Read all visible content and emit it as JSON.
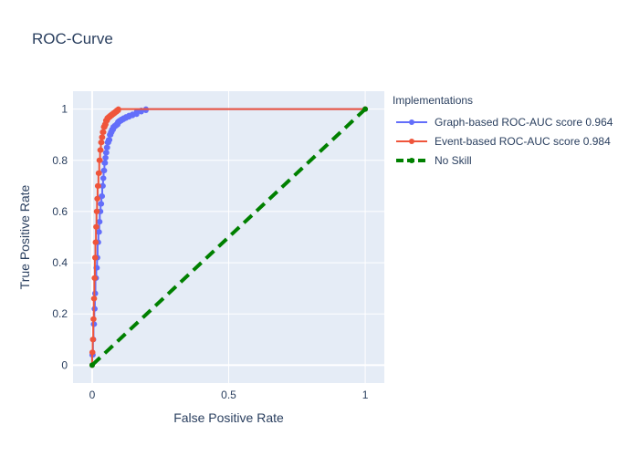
{
  "chart_data": {
    "type": "line",
    "title": "ROC-Curve",
    "xlabel": "False Positive Rate",
    "ylabel": "True Positive Rate",
    "xlim": [
      -0.07,
      1.07
    ],
    "ylim": [
      -0.07,
      1.07
    ],
    "x_ticks": [
      0,
      0.5,
      1
    ],
    "x_tick_labels": [
      "0",
      "0.5",
      "1"
    ],
    "y_ticks": [
      0,
      0.2,
      0.4,
      0.6,
      0.8,
      1
    ],
    "y_tick_labels": [
      "0",
      "0.2",
      "0.4",
      "0.6",
      "0.8",
      "1"
    ],
    "grid": true,
    "legend_title": "Implementations",
    "legend_position": "right",
    "series": [
      {
        "name": "Graph-based ROC-AUC score 0.964",
        "color": "#636efa",
        "dash": "solid",
        "x": [
          0,
          0,
          0.003,
          0.003,
          0.005,
          0.005,
          0.008,
          0.008,
          0.01,
          0.01,
          0.012,
          0.012,
          0.015,
          0.015,
          0.018,
          0.018,
          0.02,
          0.02,
          0.023,
          0.023,
          0.026,
          0.026,
          0.028,
          0.028,
          0.031,
          0.031,
          0.034,
          0.034,
          0.037,
          0.037,
          0.04,
          0.04,
          0.042,
          0.042,
          0.045,
          0.045,
          0.048,
          0.048,
          0.05,
          0.05,
          0.053,
          0.053,
          0.056,
          0.056,
          0.06,
          0.06,
          0.064,
          0.064,
          0.068,
          0.068,
          0.072,
          0.072,
          0.077,
          0.077,
          0.082,
          0.082,
          0.088,
          0.088,
          0.094,
          0.094,
          0.1,
          0.1,
          0.107,
          0.107,
          0.115,
          0.115,
          0.124,
          0.124,
          0.135,
          0.135,
          0.148,
          0.148,
          0.163,
          0.163,
          0.18,
          0.18,
          0.197,
          0.197,
          1
        ],
        "y": [
          0,
          0.04,
          0.04,
          0.1,
          0.1,
          0.16,
          0.16,
          0.22,
          0.22,
          0.28,
          0.28,
          0.34,
          0.34,
          0.38,
          0.38,
          0.42,
          0.42,
          0.48,
          0.48,
          0.52,
          0.52,
          0.56,
          0.56,
          0.6,
          0.6,
          0.63,
          0.63,
          0.66,
          0.66,
          0.7,
          0.7,
          0.73,
          0.73,
          0.76,
          0.76,
          0.79,
          0.79,
          0.81,
          0.81,
          0.83,
          0.83,
          0.85,
          0.85,
          0.87,
          0.87,
          0.88,
          0.88,
          0.9,
          0.9,
          0.91,
          0.91,
          0.92,
          0.92,
          0.93,
          0.93,
          0.935,
          0.935,
          0.94,
          0.94,
          0.95,
          0.95,
          0.955,
          0.955,
          0.96,
          0.96,
          0.965,
          0.965,
          0.97,
          0.97,
          0.975,
          0.975,
          0.98,
          0.98,
          0.99,
          0.99,
          0.995,
          0.995,
          1.0,
          1.0
        ]
      },
      {
        "name": "Event-based ROC-AUC score 0.984",
        "color": "#ef553b",
        "dash": "solid",
        "x": [
          0,
          0,
          0.002,
          0.002,
          0.004,
          0.004,
          0.006,
          0.006,
          0.008,
          0.008,
          0.01,
          0.01,
          0.012,
          0.012,
          0.014,
          0.014,
          0.016,
          0.016,
          0.018,
          0.018,
          0.02,
          0.02,
          0.023,
          0.023,
          0.026,
          0.026,
          0.029,
          0.029,
          0.032,
          0.032,
          0.035,
          0.035,
          0.038,
          0.038,
          0.042,
          0.042,
          0.046,
          0.046,
          0.05,
          0.05,
          0.055,
          0.055,
          0.06,
          0.06,
          0.066,
          0.066,
          0.072,
          0.072,
          0.078,
          0.078,
          0.084,
          0.084,
          0.09,
          0.09,
          0.096,
          0.096,
          1
        ],
        "y": [
          0,
          0.05,
          0.05,
          0.1,
          0.1,
          0.18,
          0.18,
          0.26,
          0.26,
          0.34,
          0.34,
          0.42,
          0.42,
          0.48,
          0.48,
          0.54,
          0.54,
          0.6,
          0.6,
          0.65,
          0.65,
          0.7,
          0.7,
          0.75,
          0.75,
          0.8,
          0.8,
          0.84,
          0.84,
          0.87,
          0.87,
          0.89,
          0.89,
          0.91,
          0.91,
          0.93,
          0.93,
          0.94,
          0.94,
          0.955,
          0.955,
          0.965,
          0.965,
          0.97,
          0.97,
          0.975,
          0.975,
          0.98,
          0.98,
          0.985,
          0.985,
          0.99,
          0.99,
          0.995,
          0.995,
          1.0,
          1.0
        ]
      },
      {
        "name": "No Skill",
        "color": "#008000",
        "dash": "dash",
        "x": [
          0,
          1
        ],
        "y": [
          0,
          1
        ]
      }
    ]
  }
}
